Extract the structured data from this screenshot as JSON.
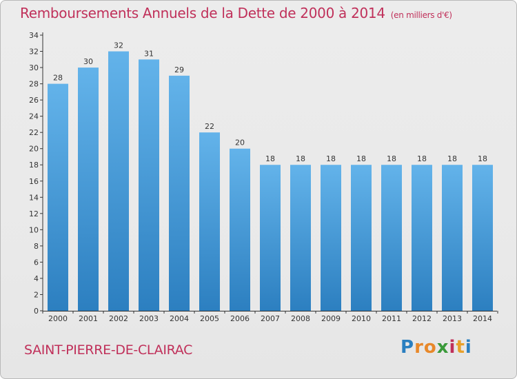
{
  "title": "Remboursements Annuels de la Dette de 2000 à 2014",
  "subtitle": "(en milliers d'€)",
  "commune": "SAINT-PIERRE-DE-CLAIRAC",
  "logo_letters": [
    "P",
    "r",
    "o",
    "x",
    "i",
    "t",
    "i"
  ],
  "colors": {
    "bar_top": "#63b3ea",
    "bar_bottom": "#2c7fc0",
    "title": "#c0305a"
  },
  "chart_data": {
    "type": "bar",
    "title": "Remboursements Annuels de la Dette de 2000 à 2014",
    "subtitle": "(en milliers d'€)",
    "categories": [
      "2000",
      "2001",
      "2002",
      "2003",
      "2004",
      "2005",
      "2006",
      "2007",
      "2008",
      "2009",
      "2010",
      "2011",
      "2012",
      "2013",
      "2014"
    ],
    "values": [
      28,
      30,
      32,
      31,
      29,
      22,
      20,
      18,
      18,
      18,
      18,
      18,
      18,
      18,
      18
    ],
    "ylim": [
      0,
      34
    ],
    "yticks": [
      0,
      2,
      4,
      6,
      8,
      10,
      12,
      14,
      16,
      18,
      20,
      22,
      24,
      26,
      28,
      30,
      32,
      34
    ],
    "xlabel": "",
    "ylabel": "",
    "grid": false,
    "data_labels": true
  }
}
